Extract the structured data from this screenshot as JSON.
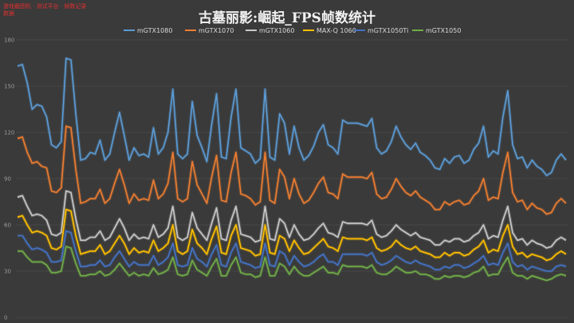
{
  "stamp": "游戏截图机 · 测试平台 · 帧数记录\n数据",
  "chart_data": {
    "type": "line",
    "title": "古墓丽影:崛起_FPS帧数统计",
    "xlabel": "",
    "ylabel": "",
    "ylim": [
      0,
      180
    ],
    "yticks": [
      0,
      30,
      60,
      90,
      120,
      150,
      180
    ],
    "grid": true,
    "legend_position": "top",
    "series": [
      {
        "name": "mGTX1080",
        "color": "#5b9bd5",
        "values": [
          163,
          164,
          152,
          135,
          138,
          137,
          130,
          112,
          110,
          114,
          168,
          167,
          132,
          102,
          103,
          107,
          106,
          115,
          102,
          106,
          120,
          133,
          118,
          102,
          110,
          105,
          106,
          104,
          123,
          106,
          110,
          120,
          148,
          106,
          103,
          106,
          140,
          118,
          110,
          101,
          125,
          145,
          104,
          103,
          130,
          148,
          110,
          108,
          106,
          100,
          103,
          148,
          104,
          102,
          132,
          126,
          106,
          124,
          110,
          102,
          105,
          111,
          120,
          125,
          112,
          110,
          106,
          128,
          126,
          126,
          126,
          125,
          124,
          129,
          110,
          106,
          108,
          114,
          124,
          117,
          112,
          109,
          113,
          107,
          105,
          102,
          97,
          96,
          103,
          100,
          104,
          105,
          100,
          102,
          109,
          113,
          124,
          104,
          108,
          106,
          130,
          147,
          112,
          103,
          104,
          97,
          102,
          98,
          96,
          92,
          94,
          102,
          106,
          102
        ]
      },
      {
        "name": "mGTX1070",
        "color": "#ed7d31",
        "values": [
          116,
          117,
          107,
          100,
          101,
          98,
          97,
          82,
          81,
          84,
          124,
          123,
          96,
          74,
          75,
          77,
          77,
          83,
          74,
          77,
          87,
          96,
          86,
          74,
          80,
          76,
          77,
          76,
          89,
          77,
          80,
          87,
          107,
          77,
          75,
          77,
          101,
          86,
          80,
          74,
          91,
          105,
          76,
          75,
          94,
          107,
          80,
          79,
          77,
          73,
          75,
          107,
          76,
          74,
          96,
          91,
          77,
          90,
          80,
          74,
          76,
          81,
          87,
          91,
          81,
          80,
          77,
          93,
          91,
          91,
          91,
          91,
          90,
          94,
          80,
          77,
          78,
          83,
          90,
          85,
          81,
          79,
          82,
          78,
          76,
          74,
          70,
          70,
          75,
          73,
          75,
          76,
          73,
          74,
          79,
          82,
          90,
          76,
          78,
          77,
          94,
          107,
          81,
          75,
          76,
          70,
          74,
          71,
          70,
          67,
          68,
          74,
          77,
          74
        ]
      },
      {
        "name": "mGTX1060",
        "color": "#c9c9c9",
        "values": [
          78,
          79,
          72,
          66,
          67,
          66,
          63,
          54,
          53,
          55,
          82,
          81,
          64,
          50,
          50,
          52,
          52,
          56,
          50,
          52,
          58,
          64,
          58,
          50,
          54,
          51,
          52,
          51,
          60,
          52,
          54,
          58,
          72,
          52,
          50,
          52,
          68,
          58,
          54,
          50,
          61,
          71,
          51,
          50,
          63,
          72,
          54,
          53,
          52,
          49,
          50,
          72,
          51,
          50,
          64,
          61,
          52,
          60,
          54,
          50,
          51,
          54,
          58,
          61,
          55,
          54,
          52,
          62,
          61,
          61,
          61,
          61,
          60,
          63,
          54,
          52,
          53,
          56,
          60,
          57,
          55,
          53,
          55,
          52,
          51,
          50,
          47,
          47,
          50,
          49,
          51,
          51,
          49,
          50,
          53,
          55,
          60,
          51,
          53,
          52,
          63,
          72,
          55,
          50,
          51,
          47,
          50,
          48,
          47,
          45,
          46,
          50,
          52,
          50
        ]
      },
      {
        "name": "MAX-Q 1060",
        "color": "#ffc000",
        "values": [
          65,
          66,
          60,
          55,
          56,
          55,
          53,
          45,
          44,
          46,
          70,
          69,
          53,
          41,
          42,
          43,
          43,
          47,
          41,
          43,
          48,
          53,
          48,
          41,
          45,
          42,
          43,
          42,
          50,
          43,
          45,
          48,
          60,
          43,
          41,
          43,
          57,
          48,
          45,
          41,
          51,
          59,
          42,
          41,
          53,
          60,
          45,
          44,
          43,
          40,
          41,
          60,
          42,
          41,
          53,
          51,
          43,
          50,
          45,
          41,
          42,
          45,
          48,
          51,
          46,
          45,
          43,
          52,
          51,
          51,
          51,
          51,
          50,
          52,
          45,
          43,
          44,
          46,
          50,
          47,
          45,
          44,
          46,
          43,
          42,
          41,
          39,
          39,
          42,
          40,
          42,
          42,
          40,
          41,
          44,
          46,
          50,
          42,
          44,
          43,
          53,
          60,
          46,
          41,
          42,
          39,
          41,
          40,
          39,
          37,
          38,
          41,
          43,
          41
        ]
      },
      {
        "name": "mGTX1050Ti",
        "color": "#4472c4",
        "values": [
          53,
          53,
          48,
          44,
          45,
          44,
          42,
          36,
          36,
          37,
          56,
          55,
          43,
          33,
          33,
          34,
          34,
          37,
          33,
          34,
          39,
          43,
          38,
          33,
          36,
          34,
          34,
          34,
          40,
          34,
          36,
          39,
          48,
          34,
          33,
          34,
          45,
          38,
          36,
          33,
          41,
          47,
          34,
          33,
          42,
          48,
          36,
          35,
          34,
          32,
          33,
          48,
          34,
          33,
          43,
          41,
          34,
          40,
          36,
          33,
          34,
          36,
          39,
          41,
          36,
          36,
          34,
          41,
          41,
          41,
          41,
          41,
          40,
          42,
          36,
          34,
          35,
          37,
          40,
          38,
          36,
          35,
          37,
          35,
          34,
          33,
          31,
          31,
          33,
          32,
          34,
          34,
          32,
          33,
          35,
          37,
          40,
          34,
          35,
          34,
          42,
          48,
          36,
          33,
          34,
          31,
          33,
          32,
          31,
          30,
          30,
          33,
          34,
          33
        ]
      },
      {
        "name": "mGTX1050",
        "color": "#70ad47",
        "values": [
          43,
          43,
          39,
          36,
          36,
          36,
          34,
          29,
          29,
          30,
          46,
          45,
          35,
          27,
          27,
          28,
          28,
          30,
          27,
          28,
          31,
          35,
          31,
          27,
          29,
          27,
          28,
          27,
          32,
          28,
          29,
          31,
          39,
          28,
          27,
          28,
          37,
          31,
          29,
          27,
          33,
          38,
          27,
          27,
          34,
          39,
          29,
          28,
          28,
          26,
          27,
          39,
          27,
          27,
          35,
          33,
          28,
          33,
          29,
          27,
          27,
          29,
          31,
          33,
          29,
          29,
          28,
          34,
          33,
          33,
          33,
          33,
          32,
          34,
          29,
          28,
          28,
          30,
          33,
          31,
          29,
          29,
          30,
          28,
          28,
          27,
          25,
          25,
          27,
          26,
          27,
          27,
          26,
          27,
          29,
          30,
          33,
          27,
          28,
          28,
          34,
          39,
          29,
          27,
          27,
          25,
          27,
          26,
          25,
          24,
          25,
          27,
          28,
          27
        ]
      }
    ]
  }
}
